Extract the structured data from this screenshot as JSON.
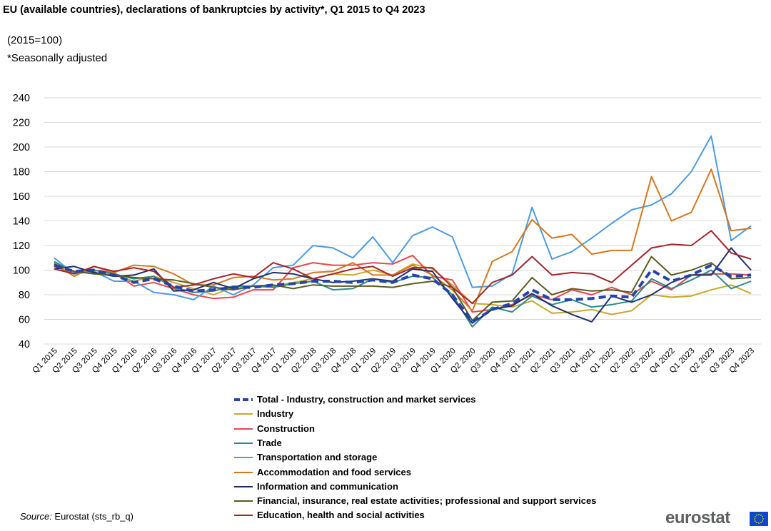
{
  "title": "EU (available countries), declarations of bankruptcies  by activity*, Q1 2015 to Q4 2023",
  "subtitle_index": "(2015=100)",
  "subtitle_note": "*Seasonally adjusted",
  "source_label": "Source:",
  "source_text": " Eurostat (sts_rb_q)",
  "logo_text": "eurostat",
  "colors": {
    "total": "#2644a8",
    "industry": "#c8a92b",
    "construction": "#e8474f",
    "trade": "#2a8c8a",
    "transport": "#4a9be3",
    "accommodation": "#d6771e",
    "information": "#1f2e6b",
    "financial": "#5c5a20",
    "education": "#a3252c"
  },
  "chart_data": {
    "type": "line",
    "title": "EU (available countries), declarations of bankruptcies  by activity*, Q1 2015 to Q4 2023",
    "xlabel": "",
    "ylabel": "",
    "ylim": [
      40,
      240
    ],
    "yticks": [
      40,
      60,
      80,
      100,
      120,
      140,
      160,
      180,
      200,
      220,
      240
    ],
    "grid": true,
    "legend_position": "bottom",
    "x": [
      "Q1 2015",
      "Q2 2015",
      "Q3 2015",
      "Q4 2015",
      "Q1 2016",
      "Q2 2016",
      "Q3 2016",
      "Q4 2016",
      "Q1 2017",
      "Q2 2017",
      "Q3 2017",
      "Q4 2017",
      "Q1 2018",
      "Q2 2018",
      "Q3 2018",
      "Q4 2018",
      "Q1 2019",
      "Q2 2019",
      "Q3 2019",
      "Q4 2019",
      "Q1 2020",
      "Q2 2020",
      "Q3 2020",
      "Q4 2020",
      "Q1 2021",
      "Q2 2021",
      "Q3 2021",
      "Q4 2021",
      "Q1 2022",
      "Q2 2022",
      "Q3 2022",
      "Q4 2022",
      "Q1 2023",
      "Q2 2023",
      "Q3 2023",
      "Q4 2023"
    ],
    "series": [
      {
        "key": "total",
        "name": "Total - Industry, construction and market services",
        "dashed": true,
        "values": [
          104,
          99,
          100,
          96,
          90,
          93,
          87,
          83,
          84,
          86,
          86,
          88,
          89,
          91,
          91,
          90,
          92,
          90,
          96,
          93,
          80,
          58,
          68,
          73,
          84,
          76,
          76,
          77,
          79,
          78,
          100,
          91,
          96,
          104,
          95,
          96
        ]
      },
      {
        "key": "industry",
        "name": "Industry",
        "values": [
          106,
          98,
          98,
          96,
          91,
          95,
          90,
          85,
          80,
          86,
          87,
          87,
          90,
          93,
          97,
          96,
          100,
          96,
          105,
          101,
          88,
          73,
          72,
          70,
          75,
          65,
          66,
          68,
          64,
          67,
          80,
          78,
          79,
          84,
          88,
          81
        ]
      },
      {
        "key": "construction",
        "name": "Construction",
        "values": [
          103,
          97,
          100,
          98,
          87,
          90,
          85,
          80,
          77,
          78,
          84,
          84,
          102,
          106,
          104,
          104,
          106,
          105,
          112,
          95,
          92,
          66,
          68,
          72,
          80,
          76,
          84,
          80,
          86,
          80,
          91,
          84,
          96,
          97,
          97,
          96
        ]
      },
      {
        "key": "trade",
        "name": "Trade",
        "values": [
          107,
          98,
          100,
          97,
          93,
          95,
          86,
          82,
          83,
          87,
          87,
          86,
          89,
          91,
          84,
          85,
          93,
          90,
          95,
          94,
          80,
          54,
          70,
          66,
          79,
          72,
          76,
          70,
          72,
          75,
          93,
          85,
          92,
          100,
          85,
          91
        ]
      },
      {
        "key": "transport",
        "name": "Transportation and storage",
        "values": [
          110,
          97,
          99,
          91,
          91,
          82,
          80,
          76,
          87,
          80,
          88,
          102,
          104,
          120,
          118,
          110,
          127,
          106,
          128,
          135,
          127,
          86,
          87,
          97,
          151,
          109,
          115,
          126,
          138,
          149,
          153,
          162,
          180,
          209,
          124,
          136
        ]
      },
      {
        "key": "accommodation",
        "name": "Accommodation and food services",
        "values": [
          105,
          95,
          103,
          98,
          104,
          103,
          97,
          88,
          88,
          94,
          95,
          92,
          93,
          98,
          99,
          106,
          96,
          96,
          104,
          96,
          84,
          67,
          107,
          115,
          141,
          126,
          129,
          113,
          116,
          116,
          176,
          140,
          147,
          182,
          132,
          134
        ]
      },
      {
        "key": "information",
        "name": "Information and communication",
        "values": [
          101,
          103,
          98,
          95,
          96,
          101,
          83,
          84,
          90,
          85,
          93,
          98,
          97,
          93,
          90,
          91,
          93,
          91,
          101,
          99,
          77,
          57,
          68,
          71,
          81,
          71,
          64,
          58,
          79,
          74,
          80,
          90,
          96,
          96,
          118,
          100
        ]
      },
      {
        "key": "financial",
        "name": "Financial, insurance, real estate activities; professional and support services",
        "values": [
          105,
          99,
          97,
          96,
          94,
          93,
          92,
          89,
          86,
          84,
          87,
          88,
          85,
          88,
          87,
          87,
          87,
          86,
          89,
          91,
          86,
          59,
          74,
          75,
          94,
          80,
          85,
          83,
          84,
          82,
          111,
          96,
          100,
          106,
          93,
          94
        ]
      },
      {
        "key": "education",
        "name": "Education,  health and social activities",
        "values": [
          101,
          97,
          103,
          99,
          102,
          99,
          86,
          88,
          93,
          97,
          94,
          106,
          101,
          93,
          97,
          101,
          103,
          95,
          102,
          102,
          86,
          73,
          90,
          96,
          111,
          96,
          98,
          97,
          90,
          104,
          118,
          121,
          120,
          132,
          114,
          109
        ]
      }
    ]
  }
}
